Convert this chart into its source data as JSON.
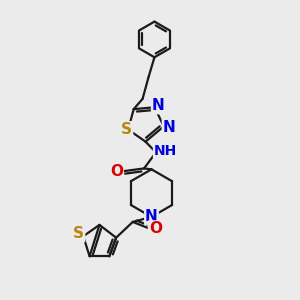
{
  "background_color": "#ebebeb",
  "bond_color": "#1a1a1a",
  "bond_width": 1.6,
  "atom_colors": {
    "S": "#b8860b",
    "N": "#0000dd",
    "O": "#dd0000",
    "NH": "#0000dd",
    "H": "#008080",
    "C": "#1a1a1a"
  },
  "font_size": 11,
  "fig_width": 3.0,
  "fig_height": 3.0,
  "dpi": 100
}
